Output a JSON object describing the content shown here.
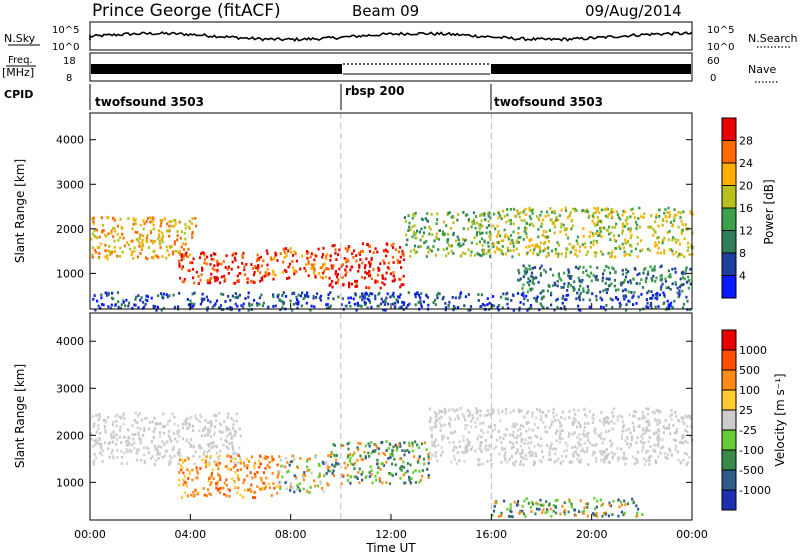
{
  "chart_data": [
    {
      "type": "heatmap",
      "title": "Prince George (fitACF)",
      "beam": "Beam 09",
      "date": "09/Aug/2014",
      "header": {
        "nsky_label": "N.Sky",
        "nsearch_label": "N.Search",
        "freq_label": "Freq.",
        "freq_unit": "[MHz]",
        "nave_label": "Nave",
        "cpid_label": "CPID",
        "nsky_ticks": [
          "10^5",
          "10^0"
        ],
        "nsearch_ticks": [
          "10^5",
          "10^0"
        ],
        "freq_ticks": [
          "18",
          "8"
        ],
        "nave_ticks": [
          "60",
          "0"
        ],
        "cpid_segments": [
          {
            "label": "twofsound 3503",
            "start_hour": 0,
            "end_hour": 10
          },
          {
            "label": "rbsp 200",
            "start_hour": 10,
            "end_hour": 16
          },
          {
            "label": "twofsound 3503",
            "start_hour": 16,
            "end_hour": 24
          }
        ]
      }
    },
    {
      "type": "heatmap",
      "panel": "power",
      "ylabel": "Slant Range [km]",
      "xlabel": "Time UT",
      "xlim": [
        0,
        24
      ],
      "ylim": [
        200,
        4600
      ],
      "y_ticks": [
        1000,
        2000,
        3000,
        4000
      ],
      "x_ticks": [
        "00:00",
        "04:00",
        "08:00",
        "12:00",
        "16:00",
        "20:00",
        "00:00"
      ],
      "colorbar": {
        "label": "Power [dB]",
        "ticks": [
          "4",
          "8",
          "12",
          "16",
          "20",
          "24",
          "28"
        ],
        "colors": [
          "#0a1aff",
          "#1f3fa0",
          "#2e7e5a",
          "#3da04a",
          "#b8c020",
          "#ffb000",
          "#ff6a00",
          "#e80000"
        ]
      },
      "echo_regions": [
        {
          "t0": 0.0,
          "t1": 4.2,
          "r0": 1350,
          "r1": 2300,
          "level": 5
        },
        {
          "t0": 3.5,
          "t1": 7.0,
          "r0": 800,
          "r1": 1500,
          "level": 7
        },
        {
          "t0": 7.0,
          "t1": 9.5,
          "r0": 900,
          "r1": 1600,
          "level": 6
        },
        {
          "t0": 9.5,
          "t1": 12.5,
          "r0": 700,
          "r1": 1700,
          "level": 7
        },
        {
          "t0": 12.5,
          "t1": 16.0,
          "r0": 1400,
          "r1": 2400,
          "level": 3
        },
        {
          "t0": 16.0,
          "t1": 24.0,
          "r0": 1400,
          "r1": 2500,
          "level": 4
        },
        {
          "t0": 17.0,
          "t1": 24.0,
          "r0": 600,
          "r1": 1200,
          "level": 2
        },
        {
          "t0": 0.0,
          "t1": 24.0,
          "r0": 200,
          "r1": 600,
          "level": 1
        }
      ]
    },
    {
      "type": "heatmap",
      "panel": "velocity",
      "ylabel": "Slant Range [km]",
      "xlabel": "Time UT",
      "xlim": [
        0,
        24
      ],
      "ylim": [
        200,
        4600
      ],
      "y_ticks": [
        1000,
        2000,
        3000,
        4000
      ],
      "x_ticks": [
        "00:00",
        "04:00",
        "08:00",
        "12:00",
        "16:00",
        "20:00",
        "00:00"
      ],
      "colorbar": {
        "label": "Velocity [m s⁻¹]",
        "ticks": [
          "1000",
          "500",
          "100",
          "25",
          "-25",
          "-100",
          "-500",
          "-1000"
        ],
        "colors": [
          "#1c2fb0",
          "#2e5a8c",
          "#3a8a4a",
          "#66cc33",
          "#cccccc",
          "#ffcc33",
          "#ff8c1a",
          "#ff5000",
          "#e80000"
        ]
      },
      "echo_regions": [
        {
          "t0": 0.0,
          "t1": 6.0,
          "r0": 1400,
          "r1": 2500,
          "class": "ground"
        },
        {
          "t0": 3.5,
          "t1": 7.5,
          "r0": 700,
          "r1": 1600,
          "class": "orange"
        },
        {
          "t0": 7.5,
          "t1": 9.5,
          "r0": 800,
          "r1": 1600,
          "class": "mixed"
        },
        {
          "t0": 9.5,
          "t1": 13.5,
          "r0": 1000,
          "r1": 1900,
          "class": "green"
        },
        {
          "t0": 13.5,
          "t1": 24.0,
          "r0": 1400,
          "r1": 2600,
          "class": "ground"
        },
        {
          "t0": 16.0,
          "t1": 22.0,
          "r0": 300,
          "r1": 700,
          "class": "green"
        }
      ]
    }
  ]
}
